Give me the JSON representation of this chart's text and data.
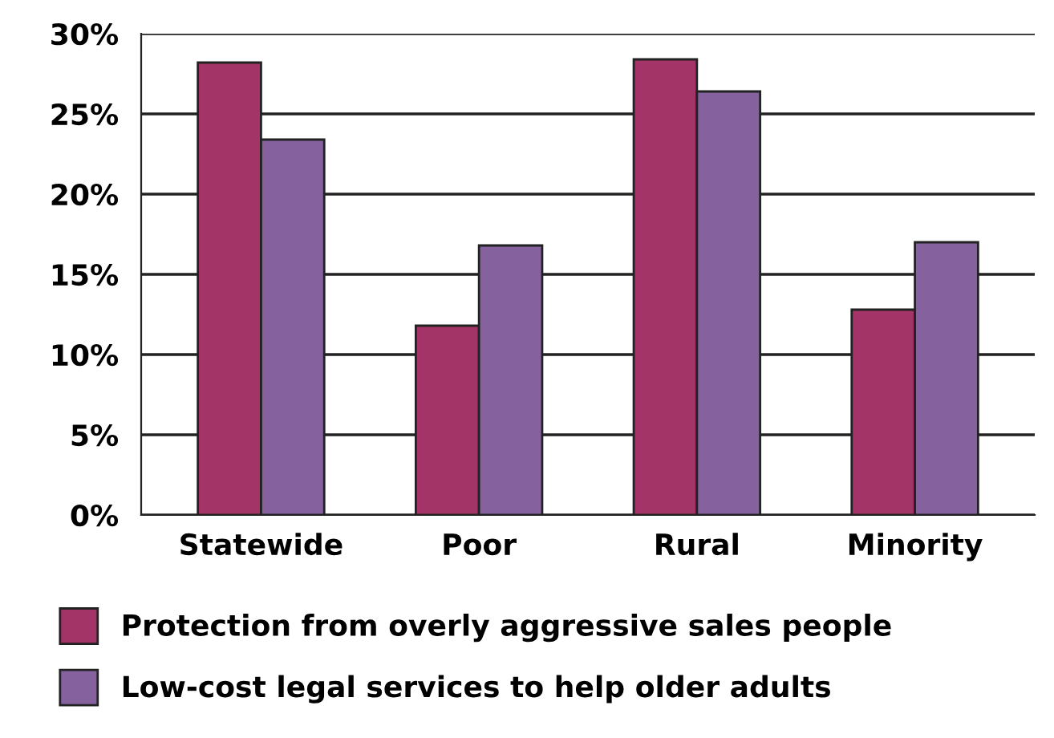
{
  "chart_data": {
    "type": "bar",
    "categories": [
      "Statewide",
      "Poor",
      "Rural",
      "Minority"
    ],
    "series": [
      {
        "name": "Protection from overly aggressive sales people",
        "color": "#a33467",
        "values": [
          28.2,
          11.8,
          28.4,
          12.8
        ]
      },
      {
        "name": "Low-cost legal services to help older adults",
        "color": "#85619e",
        "values": [
          23.4,
          16.8,
          26.4,
          17.0
        ]
      }
    ],
    "ylim": [
      0,
      30
    ],
    "yticks": [
      {
        "value": 0,
        "label": "0%"
      },
      {
        "value": 5,
        "label": "5%"
      },
      {
        "value": 10,
        "label": "10%"
      },
      {
        "value": 15,
        "label": "15%"
      },
      {
        "value": 20,
        "label": "20%"
      },
      {
        "value": 25,
        "label": "25%"
      },
      {
        "value": 30,
        "label": "30%"
      }
    ],
    "grid": "y",
    "legend": "bottom"
  }
}
